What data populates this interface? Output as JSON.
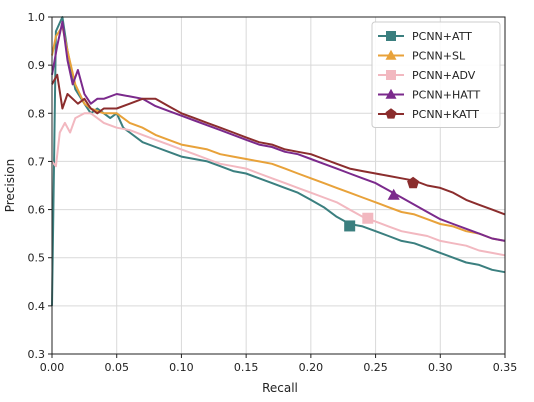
{
  "chart_data": {
    "type": "line",
    "xlabel": "Recall",
    "ylabel": "Precision",
    "xlim": [
      0.0,
      0.35
    ],
    "ylim": [
      0.3,
      1.0
    ],
    "x_ticks": [
      0.0,
      0.05,
      0.1,
      0.15,
      0.2,
      0.25,
      0.3,
      0.35
    ],
    "x_tick_labels": [
      "0.00",
      "0.05",
      "0.10",
      "0.15",
      "0.20",
      "0.25",
      "0.30",
      "0.35"
    ],
    "y_ticks": [
      0.3,
      0.4,
      0.5,
      0.6,
      0.7,
      0.8,
      0.9,
      1.0
    ],
    "y_tick_labels": [
      "0.3",
      "0.4",
      "0.5",
      "0.6",
      "0.7",
      "0.8",
      "0.9",
      "1.0"
    ],
    "grid": true,
    "legend_position": "top-right",
    "series": [
      {
        "name": "PCNN+ATT",
        "color": "#3b7f7f",
        "marker": "square",
        "marker_at": [
          0.23,
          0.566
        ],
        "x": [
          0.0,
          0.003,
          0.008,
          0.012,
          0.018,
          0.025,
          0.03,
          0.035,
          0.04,
          0.045,
          0.05,
          0.055,
          0.06,
          0.07,
          0.08,
          0.09,
          0.1,
          0.11,
          0.12,
          0.13,
          0.14,
          0.15,
          0.16,
          0.17,
          0.18,
          0.19,
          0.2,
          0.21,
          0.22,
          0.23,
          0.24,
          0.25,
          0.26,
          0.27,
          0.28,
          0.29,
          0.3,
          0.31,
          0.32,
          0.33,
          0.34,
          0.35
        ],
        "y": [
          0.4,
          0.97,
          1.0,
          0.93,
          0.85,
          0.82,
          0.8,
          0.81,
          0.8,
          0.79,
          0.8,
          0.77,
          0.76,
          0.74,
          0.73,
          0.72,
          0.71,
          0.705,
          0.7,
          0.69,
          0.68,
          0.675,
          0.665,
          0.655,
          0.645,
          0.635,
          0.62,
          0.605,
          0.585,
          0.57,
          0.565,
          0.555,
          0.545,
          0.535,
          0.53,
          0.52,
          0.51,
          0.5,
          0.49,
          0.485,
          0.475,
          0.47
        ]
      },
      {
        "name": "PCNN+SL",
        "color": "#e8a23a",
        "marker": "triangle",
        "marker_at": null,
        "x": [
          0.0,
          0.003,
          0.008,
          0.012,
          0.018,
          0.025,
          0.03,
          0.04,
          0.05,
          0.06,
          0.07,
          0.08,
          0.09,
          0.1,
          0.11,
          0.12,
          0.13,
          0.14,
          0.15,
          0.16,
          0.17,
          0.18,
          0.19,
          0.2,
          0.21,
          0.22,
          0.23,
          0.24,
          0.25,
          0.26,
          0.27,
          0.28,
          0.29,
          0.3,
          0.31,
          0.32,
          0.33,
          0.34,
          0.35
        ],
        "y": [
          0.92,
          0.96,
          0.98,
          0.93,
          0.86,
          0.82,
          0.81,
          0.8,
          0.8,
          0.78,
          0.77,
          0.755,
          0.745,
          0.735,
          0.73,
          0.725,
          0.715,
          0.71,
          0.705,
          0.7,
          0.695,
          0.685,
          0.675,
          0.665,
          0.655,
          0.645,
          0.635,
          0.625,
          0.615,
          0.605,
          0.595,
          0.59,
          0.58,
          0.57,
          0.565,
          0.555,
          0.55,
          0.54,
          0.535
        ]
      },
      {
        "name": "PCNN+ADV",
        "color": "#f2b8c0",
        "marker": "square",
        "marker_at": [
          0.244,
          0.582
        ],
        "x": [
          0.0,
          0.003,
          0.006,
          0.01,
          0.014,
          0.018,
          0.025,
          0.03,
          0.035,
          0.04,
          0.05,
          0.06,
          0.07,
          0.08,
          0.09,
          0.1,
          0.11,
          0.12,
          0.13,
          0.14,
          0.15,
          0.16,
          0.17,
          0.18,
          0.19,
          0.2,
          0.21,
          0.22,
          0.23,
          0.24,
          0.25,
          0.26,
          0.27,
          0.28,
          0.29,
          0.3,
          0.31,
          0.32,
          0.33,
          0.34,
          0.35
        ],
        "y": [
          0.7,
          0.69,
          0.76,
          0.78,
          0.76,
          0.79,
          0.8,
          0.8,
          0.79,
          0.78,
          0.77,
          0.765,
          0.755,
          0.745,
          0.735,
          0.725,
          0.715,
          0.705,
          0.695,
          0.69,
          0.685,
          0.675,
          0.665,
          0.655,
          0.645,
          0.635,
          0.625,
          0.615,
          0.6,
          0.585,
          0.575,
          0.565,
          0.555,
          0.55,
          0.545,
          0.535,
          0.53,
          0.525,
          0.515,
          0.51,
          0.505
        ]
      },
      {
        "name": "PCNN+HATT",
        "color": "#7b2a8c",
        "marker": "triangle",
        "marker_at": [
          0.264,
          0.63
        ],
        "x": [
          0.0,
          0.004,
          0.008,
          0.012,
          0.016,
          0.02,
          0.025,
          0.03,
          0.035,
          0.04,
          0.05,
          0.06,
          0.07,
          0.08,
          0.09,
          0.1,
          0.11,
          0.12,
          0.13,
          0.14,
          0.15,
          0.16,
          0.17,
          0.18,
          0.19,
          0.2,
          0.21,
          0.22,
          0.23,
          0.24,
          0.25,
          0.26,
          0.27,
          0.28,
          0.29,
          0.3,
          0.31,
          0.32,
          0.33,
          0.34,
          0.35
        ],
        "y": [
          0.88,
          0.94,
          0.99,
          0.91,
          0.86,
          0.89,
          0.84,
          0.82,
          0.83,
          0.83,
          0.84,
          0.835,
          0.83,
          0.815,
          0.805,
          0.795,
          0.785,
          0.775,
          0.765,
          0.755,
          0.745,
          0.735,
          0.73,
          0.72,
          0.715,
          0.705,
          0.695,
          0.685,
          0.675,
          0.665,
          0.655,
          0.64,
          0.625,
          0.61,
          0.595,
          0.58,
          0.57,
          0.56,
          0.55,
          0.54,
          0.535
        ]
      },
      {
        "name": "PCNN+KATT",
        "color": "#8b2d2d",
        "marker": "pentagon",
        "marker_at": [
          0.279,
          0.655
        ],
        "x": [
          0.0,
          0.004,
          0.008,
          0.012,
          0.016,
          0.02,
          0.025,
          0.03,
          0.035,
          0.04,
          0.05,
          0.06,
          0.07,
          0.08,
          0.09,
          0.1,
          0.11,
          0.12,
          0.13,
          0.14,
          0.15,
          0.16,
          0.17,
          0.18,
          0.19,
          0.2,
          0.21,
          0.22,
          0.23,
          0.24,
          0.25,
          0.26,
          0.27,
          0.28,
          0.29,
          0.3,
          0.31,
          0.32,
          0.33,
          0.34,
          0.35
        ],
        "y": [
          0.86,
          0.88,
          0.81,
          0.84,
          0.83,
          0.82,
          0.83,
          0.81,
          0.8,
          0.81,
          0.81,
          0.82,
          0.83,
          0.83,
          0.815,
          0.8,
          0.79,
          0.78,
          0.77,
          0.76,
          0.75,
          0.74,
          0.735,
          0.725,
          0.72,
          0.715,
          0.705,
          0.695,
          0.685,
          0.68,
          0.675,
          0.67,
          0.665,
          0.66,
          0.65,
          0.645,
          0.635,
          0.62,
          0.61,
          0.6,
          0.59
        ]
      }
    ]
  }
}
